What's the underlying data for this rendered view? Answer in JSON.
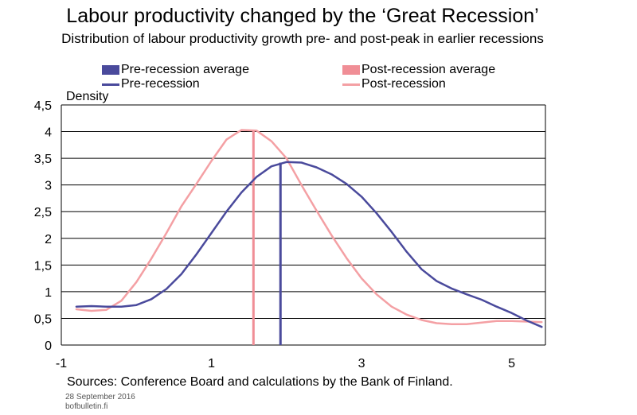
{
  "title": "Labour productivity changed by the ‘Great Recession’",
  "subtitle": "Distribution of labour productivity growth pre- and post-peak in earlier recessions",
  "legend": {
    "pre_avg": "Pre-recession average",
    "post_avg": "Post-recession average",
    "pre": "Pre-recession",
    "post": "Post-recession"
  },
  "colors": {
    "pre": "#4a4a9c",
    "post": "#f4a0a4",
    "pre_avg": "#4a4a9c",
    "post_avg": "#f08e96"
  },
  "sources": "Sources: Conference Board and calculations by the Bank of Finland.",
  "date": "28 September 2016",
  "site": "bofbulletin.fi",
  "chart_data": {
    "type": "line",
    "ylabel": "Density",
    "xlim": [
      -1,
      5.45
    ],
    "ylim": [
      0,
      4.5
    ],
    "x_ticks": [
      -1,
      1,
      3,
      5
    ],
    "x_tick_labels": [
      "-1",
      "1",
      "3",
      "5"
    ],
    "y_ticks": [
      0,
      0.5,
      1,
      1.5,
      2,
      2.5,
      3,
      3.5,
      4,
      4.5
    ],
    "y_tick_labels": [
      "0",
      "0,5",
      "1",
      "1,5",
      "2",
      "2,5",
      "3",
      "3,5",
      "4",
      "4,5"
    ],
    "grid": "horizontal",
    "legend_position": "top",
    "series": [
      {
        "name": "Pre-recession",
        "x": [
          -0.8,
          -0.6,
          -0.4,
          -0.2,
          0.0,
          0.2,
          0.4,
          0.6,
          0.8,
          1.0,
          1.2,
          1.4,
          1.6,
          1.8,
          2.0,
          2.2,
          2.4,
          2.6,
          2.8,
          3.0,
          3.2,
          3.4,
          3.6,
          3.8,
          4.0,
          4.2,
          4.4,
          4.6,
          4.8,
          5.0,
          5.2,
          5.4
        ],
        "y": [
          0.72,
          0.73,
          0.72,
          0.72,
          0.75,
          0.86,
          1.05,
          1.33,
          1.7,
          2.1,
          2.5,
          2.86,
          3.15,
          3.35,
          3.43,
          3.42,
          3.33,
          3.2,
          3.02,
          2.78,
          2.47,
          2.12,
          1.75,
          1.42,
          1.2,
          1.06,
          0.95,
          0.85,
          0.72,
          0.6,
          0.46,
          0.34
        ]
      },
      {
        "name": "Post-recession",
        "x": [
          -0.8,
          -0.6,
          -0.4,
          -0.2,
          0.0,
          0.2,
          0.4,
          0.6,
          0.8,
          1.0,
          1.2,
          1.4,
          1.6,
          1.8,
          2.0,
          2.2,
          2.4,
          2.6,
          2.8,
          3.0,
          3.2,
          3.4,
          3.6,
          3.8,
          4.0,
          4.2,
          4.4,
          4.6,
          4.8,
          5.0,
          5.2,
          5.4
        ],
        "y": [
          0.67,
          0.64,
          0.66,
          0.83,
          1.18,
          1.62,
          2.1,
          2.6,
          3.02,
          3.45,
          3.85,
          4.03,
          4.02,
          3.82,
          3.5,
          3.0,
          2.52,
          2.06,
          1.63,
          1.25,
          0.95,
          0.72,
          0.57,
          0.47,
          0.41,
          0.39,
          0.39,
          0.42,
          0.45,
          0.45,
          0.44,
          0.43
        ]
      }
    ],
    "averages": [
      {
        "name": "Pre-recession average",
        "x": 1.92,
        "y": 3.42
      },
      {
        "name": "Post-recession average",
        "x": 1.56,
        "y": 4.02
      }
    ]
  }
}
